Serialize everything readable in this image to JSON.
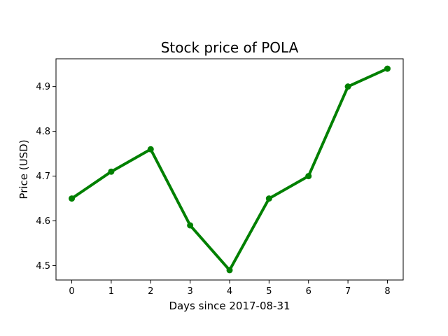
{
  "chart_data": {
    "type": "line",
    "title": "Stock price of POLA",
    "xlabel": "Days since 2017-08-31",
    "ylabel": "Price (USD)",
    "x": [
      0,
      1,
      2,
      3,
      4,
      5,
      6,
      7,
      8
    ],
    "series": [
      {
        "values": [
          4.65,
          4.71,
          4.76,
          4.59,
          4.49,
          4.65,
          4.7,
          4.9,
          4.94
        ],
        "color": "#008000",
        "marker": "circle"
      }
    ],
    "x_ticks": [
      0,
      1,
      2,
      3,
      4,
      5,
      6,
      7,
      8
    ],
    "x_tick_labels": [
      "0",
      "1",
      "2",
      "3",
      "4",
      "5",
      "6",
      "7",
      "8"
    ],
    "y_ticks": [
      4.5,
      4.6,
      4.7,
      4.8,
      4.9
    ],
    "y_tick_labels": [
      "4.5",
      "4.6",
      "4.7",
      "4.8",
      "4.9"
    ],
    "xlim": [
      -0.4,
      8.4
    ],
    "ylim": [
      4.468,
      4.962
    ],
    "grid": false,
    "legend": "none"
  }
}
